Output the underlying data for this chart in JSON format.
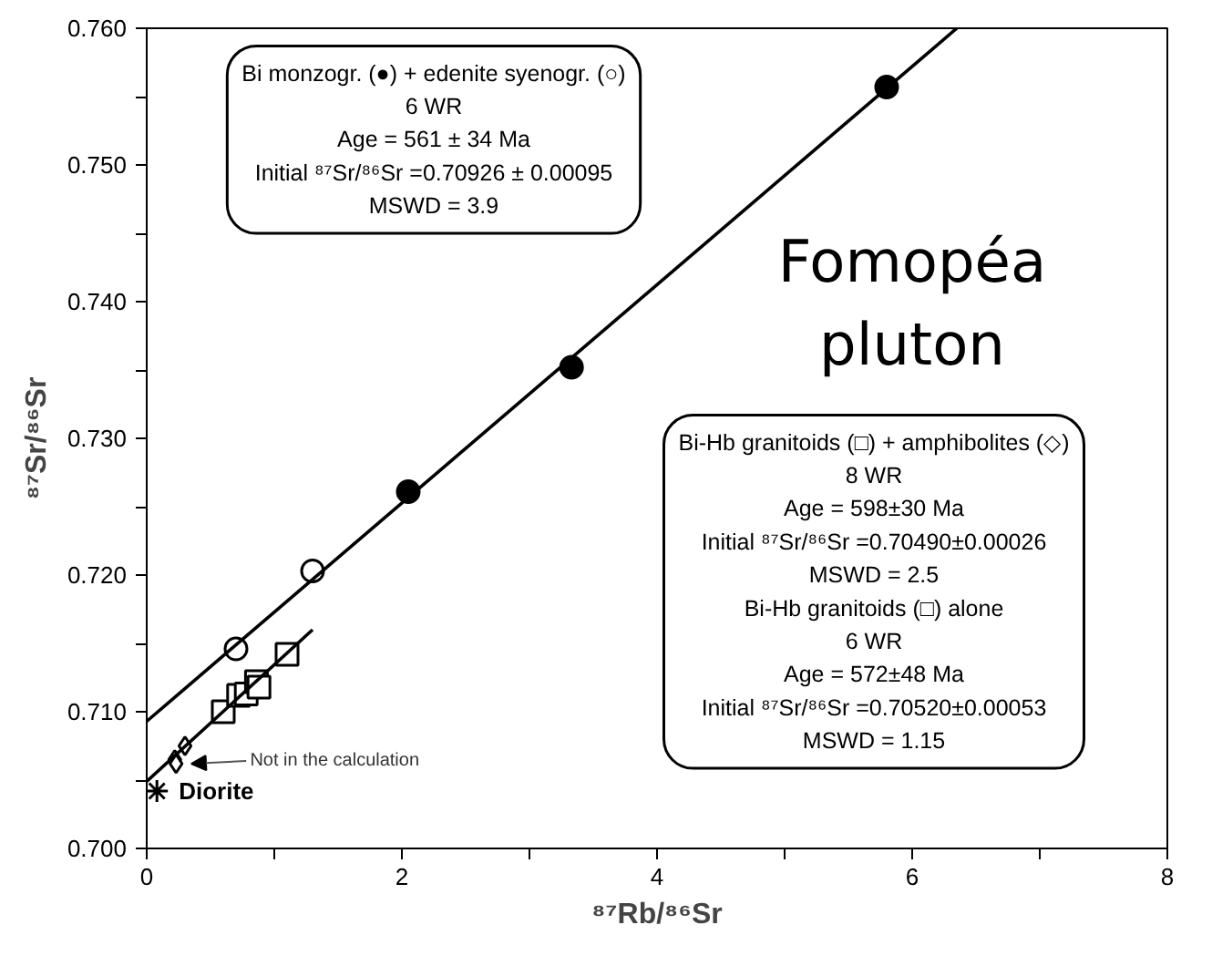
{
  "chart_data": {
    "type": "scatter",
    "xlabel": "⁸⁷Rb/⁸⁶Sr",
    "ylabel": "⁸⁷Sr/⁸⁶Sr",
    "xlim": [
      0,
      8
    ],
    "ylim": [
      0.7,
      0.76
    ],
    "xticks": [
      0,
      {
        "value": 1,
        "label": null
      },
      2,
      {
        "value": 3,
        "label": null
      },
      4,
      {
        "value": 5,
        "label": null
      },
      6,
      {
        "value": 7,
        "label": null
      },
      8
    ],
    "yticks": [
      {
        "value": 0.7,
        "label": "0.700"
      },
      {
        "value": 0.705,
        "label": null
      },
      {
        "value": 0.71,
        "label": "0.710"
      },
      {
        "value": 0.715,
        "label": null
      },
      {
        "value": 0.72,
        "label": "0.720"
      },
      {
        "value": 0.725,
        "label": null
      },
      {
        "value": 0.73,
        "label": "0.730"
      },
      {
        "value": 0.735,
        "label": null
      },
      {
        "value": 0.74,
        "label": "0.740"
      },
      {
        "value": 0.745,
        "label": null
      },
      {
        "value": 0.75,
        "label": "0.750"
      },
      {
        "value": 0.755,
        "label": null
      },
      {
        "value": 0.76,
        "label": "0.760"
      }
    ],
    "grid": false,
    "series": [
      {
        "marker": "circle",
        "color": "#000000",
        "x": [
          2.05,
          3.33,
          5.8
        ],
        "values": [
          0.7261,
          0.7352,
          0.7557
        ]
      },
      {
        "marker": "circle",
        "color": "#ffffff",
        "x": [
          0.7,
          1.3
        ],
        "values": [
          0.7146,
          0.7203
        ]
      },
      {
        "marker": "square",
        "color": "#ffffff",
        "x": [
          0.6,
          0.72,
          0.78,
          0.86,
          0.88,
          1.1
        ],
        "values": [
          0.71,
          0.7112,
          0.7113,
          0.7122,
          0.7118,
          0.7142
        ]
      },
      {
        "marker": "diamond",
        "color": "#ffffff",
        "x": [
          0.22,
          0.23,
          0.3
        ],
        "values": [
          0.7065,
          0.7062,
          0.7075
        ]
      },
      {
        "marker": "cross",
        "color": "#000000",
        "x": [
          0.08
        ],
        "values": [
          0.7042
        ]
      },
      {
        "type": "line",
        "line_style": "solid",
        "color": "#000000",
        "x": [
          0,
          6.35
        ],
        "values": [
          0.7093,
          0.76
        ]
      },
      {
        "type": "line",
        "line_style": "solid",
        "color": "#000000",
        "x": [
          0,
          1.3
        ],
        "values": [
          0.7049,
          0.716
        ]
      }
    ],
    "annotations": [
      "Bi monzogr. (●) + edenite syenogr. (○)\n6 WR\nAge = 561 ± 34 Ma\nInitial ⁸⁷Sr/⁸⁶Sr =0.70926 ± 0.00095\nMSWD = 3.9",
      "Fomopéa\npluton",
      "Bi-Hb granitoids (□) + amphibolites (◇)\n8 WR\nAge = 598±30 Ma\nInitial ⁸⁷Sr/⁸⁶Sr =0.70490±0.00026\nMSWD = 2.5\nBi-Hb granitoids (□) alone\n6 WR\nAge = 572±48 Ma\nInitial ⁸⁷Sr/⁸⁶Sr =0.70520±0.00053\nMSWD = 1.15",
      {
        "text": "Diorite",
        "x": 0.08,
        "y": 0.7042
      },
      {
        "text": "Not in the calculation",
        "x": 0.23,
        "y": 0.7062
      }
    ]
  }
}
